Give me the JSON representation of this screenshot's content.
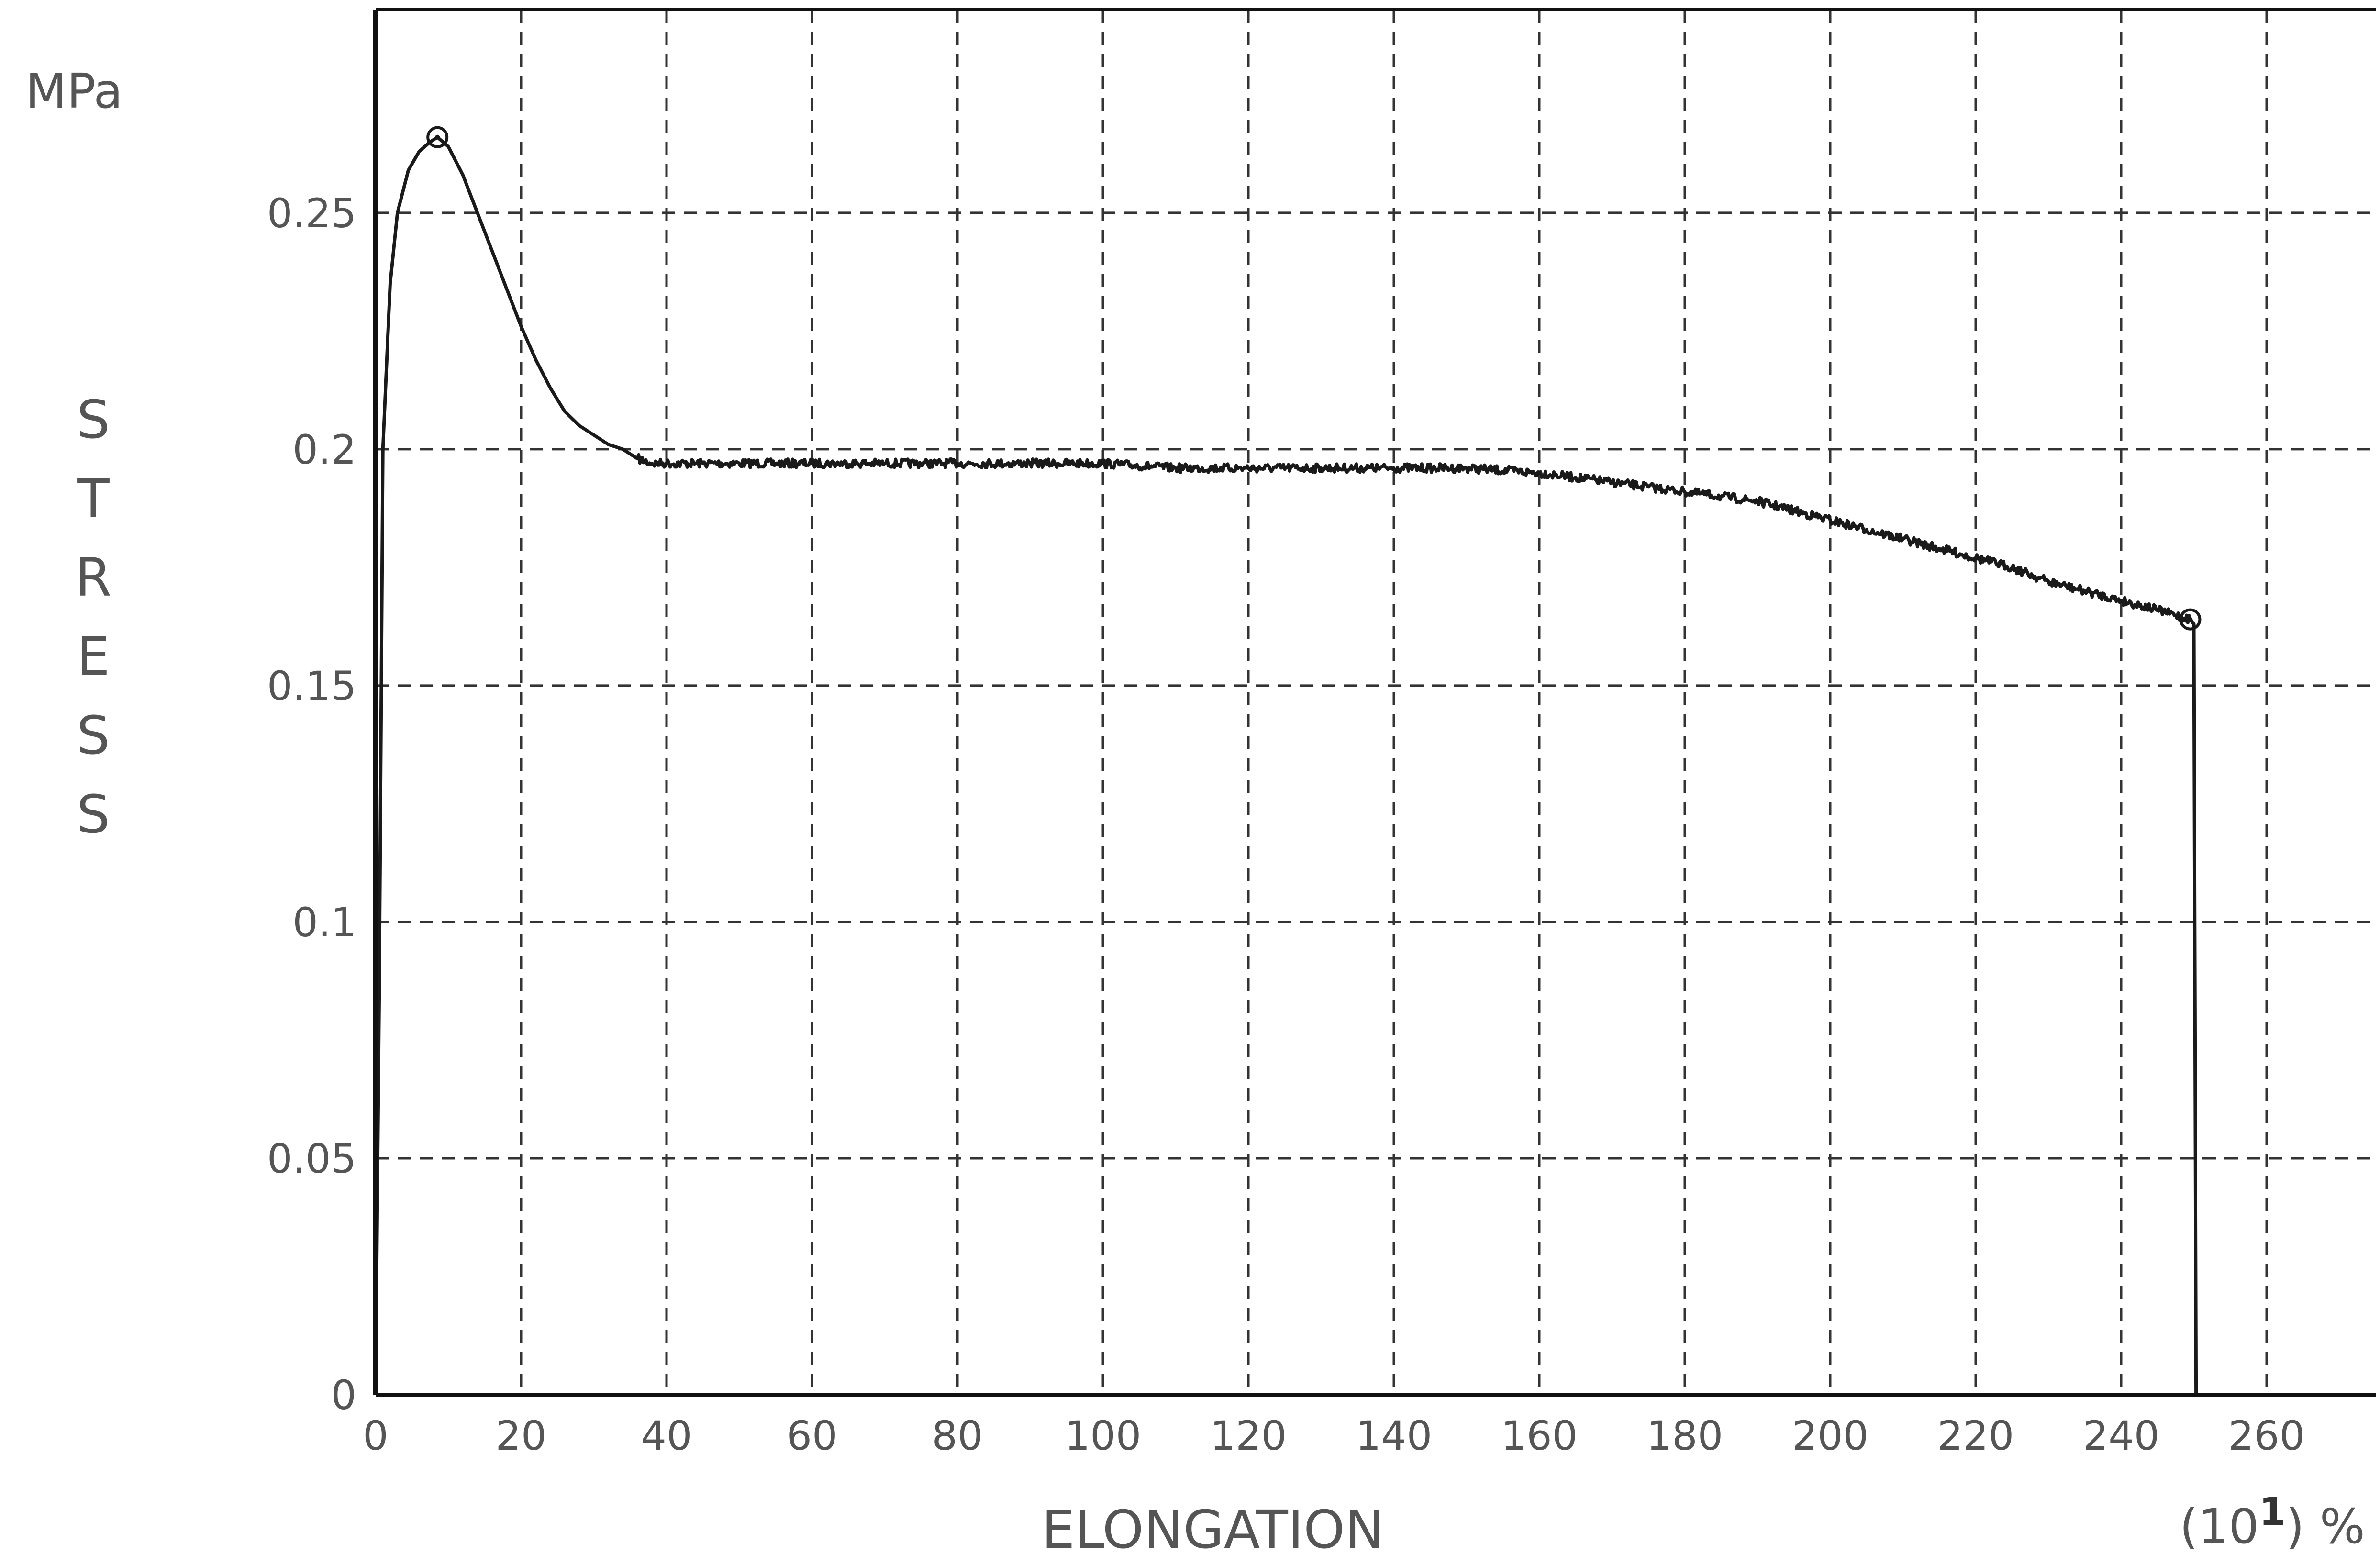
{
  "chart_data": {
    "type": "line",
    "title": "",
    "xlabel": "ELONGATION",
    "ylabel_letters": [
      "S",
      "T",
      "R",
      "E",
      "S",
      "S"
    ],
    "ylabel": "STRESS",
    "y_unit": "MPa",
    "x_unit_prefix": "(10",
    "x_unit_exp": "1",
    "x_unit_suffix": ") %",
    "xlim": [
      0,
      275
    ],
    "ylim": [
      0,
      0.293
    ],
    "x_ticks": [
      0,
      20,
      40,
      60,
      80,
      100,
      120,
      140,
      160,
      180,
      200,
      220,
      240,
      260
    ],
    "x_tick_labels": [
      "0",
      "20",
      "40",
      "60",
      "80",
      "100",
      "120",
      "140",
      "160",
      "180",
      "200",
      "220",
      "240",
      "260"
    ],
    "y_ticks": [
      0,
      0.05,
      0.1,
      0.15,
      0.2,
      0.25
    ],
    "y_tick_labels": [
      "0",
      "0.05",
      "0.1",
      "0.15",
      "0.2",
      "0.25"
    ],
    "grid": true,
    "grid_style": "dashed",
    "line_color": "#1a1a1a",
    "grid_color": "#333333",
    "series": [
      {
        "values_x": [
          0,
          0.5,
          1.0,
          2.0,
          3.0,
          4.5,
          6.0,
          7.5,
          8.5,
          10,
          12,
          14,
          16,
          18,
          20,
          22,
          24,
          26,
          28,
          30,
          32,
          34,
          36,
          38,
          40,
          45,
          50,
          55,
          60,
          70,
          80,
          90,
          100,
          110,
          120,
          130,
          140,
          150,
          160,
          165,
          170,
          175,
          180,
          185,
          190,
          195,
          200,
          205,
          210,
          215,
          220,
          225,
          230,
          235,
          240,
          245,
          249.5,
          250,
          250.3
        ],
        "values_y": [
          0,
          0.085,
          0.2,
          0.235,
          0.25,
          0.259,
          0.263,
          0.265,
          0.266,
          0.264,
          0.258,
          0.25,
          0.242,
          0.234,
          0.226,
          0.219,
          0.213,
          0.208,
          0.205,
          0.203,
          0.201,
          0.2,
          0.198,
          0.197,
          0.197,
          0.197,
          0.197,
          0.197,
          0.197,
          0.197,
          0.197,
          0.197,
          0.197,
          0.196,
          0.196,
          0.196,
          0.196,
          0.196,
          0.195,
          0.194,
          0.193,
          0.192,
          0.191,
          0.19,
          0.189,
          0.187,
          0.185,
          0.183,
          0.181,
          0.179,
          0.177,
          0.175,
          0.172,
          0.17,
          0.168,
          0.166,
          0.164,
          0.163,
          0
        ]
      }
    ],
    "markers": [
      {
        "x": 8.5,
        "y": 0.266
      },
      {
        "x": 249.5,
        "y": 0.164
      }
    ]
  }
}
